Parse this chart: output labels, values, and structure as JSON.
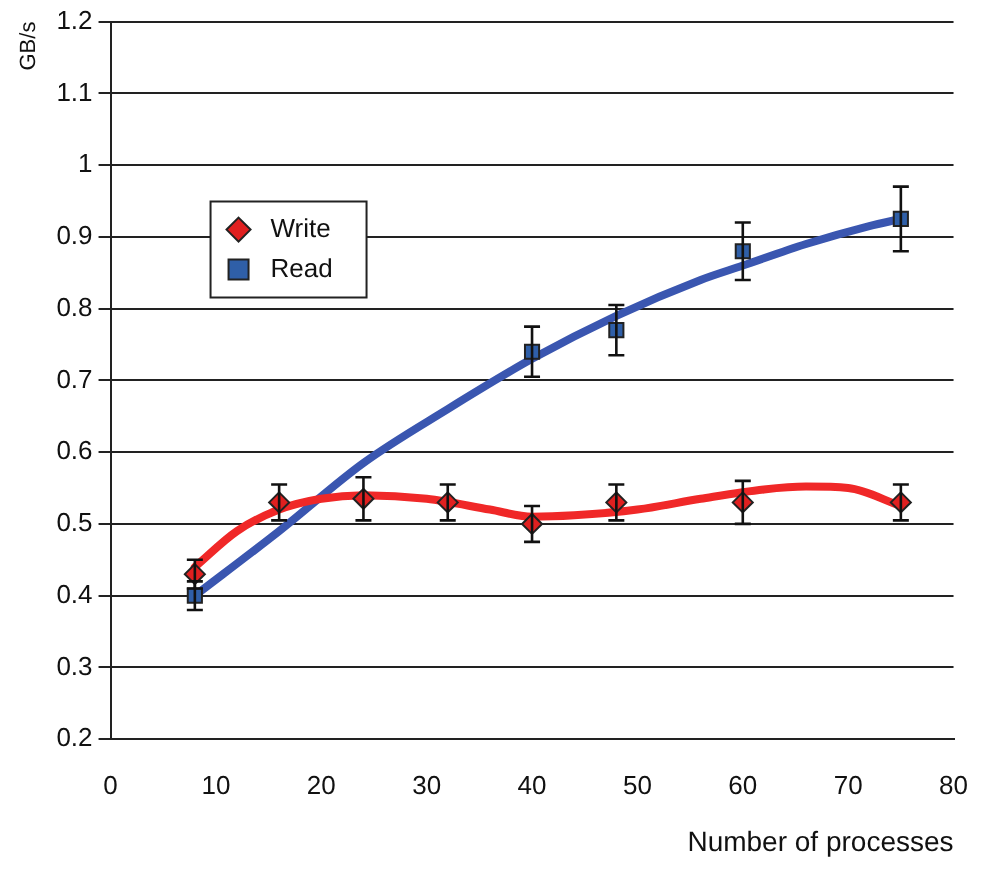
{
  "chart_data": {
    "type": "scatter",
    "xlabel": "Number of processes",
    "ylabel": "GB/s",
    "xlim": [
      0,
      80
    ],
    "xticks": [
      0,
      10,
      20,
      30,
      40,
      50,
      60,
      70,
      80
    ],
    "ylim": [
      0.2,
      1.2
    ],
    "yticks": [
      0.2,
      0.3,
      0.4,
      0.5,
      0.6,
      0.7,
      0.8,
      0.9,
      1,
      1.1,
      1.2
    ],
    "grid": "y",
    "legend": "top left",
    "series": [
      {
        "name": "Write",
        "color": "#e02020",
        "marker": "diamond",
        "x": [
          8,
          16,
          24,
          32,
          40,
          48,
          60,
          75
        ],
        "values": [
          0.43,
          0.53,
          0.535,
          0.53,
          0.5,
          0.53,
          0.53,
          0.53
        ],
        "errors": [
          0.02,
          0.025,
          0.03,
          0.025,
          0.025,
          0.025,
          0.03,
          0.025
        ]
      },
      {
        "name": "Read",
        "color": "#2f5fa8",
        "marker": "square",
        "x": [
          8,
          40,
          48,
          60,
          75
        ],
        "values": [
          0.4,
          0.74,
          0.77,
          0.88,
          0.925
        ],
        "errors": [
          0.02,
          0.035,
          0.035,
          0.04,
          0.045
        ]
      },
      {
        "type": "line",
        "color": "#f02828",
        "marker": "none",
        "x": [
          8,
          12,
          16,
          20,
          24,
          30,
          36,
          40,
          44,
          50,
          56,
          62,
          66,
          70,
          75
        ],
        "values": [
          0.44,
          0.49,
          0.52,
          0.535,
          0.54,
          0.535,
          0.52,
          0.51,
          0.512,
          0.52,
          0.535,
          0.548,
          0.552,
          0.55,
          0.525
        ]
      },
      {
        "type": "line",
        "color": "#3a56b0",
        "marker": "none",
        "x": [
          8,
          16,
          24,
          32,
          40,
          48,
          56,
          60,
          66,
          72,
          75
        ],
        "values": [
          0.4,
          0.49,
          0.585,
          0.66,
          0.73,
          0.79,
          0.84,
          0.86,
          0.89,
          0.915,
          0.925
        ]
      }
    ]
  }
}
